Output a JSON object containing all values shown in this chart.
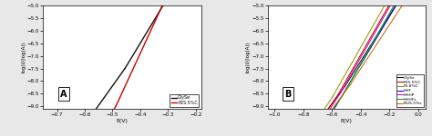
{
  "panel_A": {
    "label": "A",
    "xlabel": "E(V)",
    "ylabel": "log(I/(log(A))",
    "xlim": [
      -0.75,
      -0.18
    ],
    "ylim": [
      -9.1,
      -5.0
    ],
    "yticks": [
      -9.0,
      -8.5,
      -8.0,
      -7.5,
      -7.0,
      -6.5,
      -6.0,
      -5.5,
      -5.0
    ],
    "xticks": [
      -0.7,
      -0.6,
      -0.5,
      -0.4,
      -0.3,
      -0.2
    ],
    "curves": [
      {
        "label": "GlySe",
        "color": "#111111",
        "ecorr": -0.455,
        "icorr": -7.5,
        "ba": 0.055,
        "bc": 0.065,
        "x_start_cat": -0.75,
        "x_end_ano": -0.19
      },
      {
        "label": "P2S.5%C",
        "color": "#cc0000",
        "ecorr": -0.488,
        "icorr": -9.0,
        "ba": 0.042,
        "bc": 0.055,
        "x_start_cat": -0.75,
        "x_end_ano": -0.19
      }
    ]
  },
  "panel_B": {
    "label": "B",
    "xlabel": "E(V)",
    "ylabel": "log(I/(log(A))",
    "xlim": [
      -1.05,
      0.05
    ],
    "ylim": [
      -9.1,
      -5.0
    ],
    "yticks": [
      -9.0,
      -8.5,
      -8.0,
      -7.5,
      -7.0,
      -6.5,
      -6.0,
      -5.5,
      -5.0
    ],
    "xticks": [
      -1.0,
      -0.8,
      -0.6,
      -0.4,
      -0.2,
      0.0
    ],
    "curves": [
      {
        "label": "GlySe",
        "color": "#111111",
        "ecorr": -0.51,
        "icorr": -8.2,
        "ba": 0.11,
        "bc": 0.13,
        "x_start_cat": -1.0,
        "x_end_ano": 0.0
      },
      {
        "label": "P2S.5%C",
        "color": "#cc0000",
        "ecorr": -0.555,
        "icorr": -8.5,
        "ba": 0.1,
        "bc": 0.12,
        "x_start_cat": -1.0,
        "x_end_ano": 0.0
      },
      {
        "label": "P2.8%C",
        "color": "#999900",
        "ecorr": -0.595,
        "icorr": -8.6,
        "ba": 0.1,
        "bc": 0.115,
        "x_start_cat": -1.0,
        "x_end_ano": 0.0
      },
      {
        "label": "HHF",
        "color": "#0000ee",
        "ecorr": -0.575,
        "icorr": -9.0,
        "ba": 0.105,
        "bc": 0.115,
        "x_start_cat": -1.0,
        "x_end_ano": 0.0
      },
      {
        "label": "HHHP",
        "color": "#cc00cc",
        "ecorr": -0.54,
        "icorr": -8.45,
        "ba": 0.1,
        "bc": 0.115,
        "x_start_cat": -1.0,
        "x_end_ano": 0.0
      },
      {
        "label": "HHHFs",
        "color": "#00aa00",
        "ecorr": -0.525,
        "icorr": -8.55,
        "ba": 0.1,
        "bc": 0.12,
        "x_start_cat": -1.0,
        "x_end_ano": 0.0
      },
      {
        "label": "Pt2S.5%s",
        "color": "#cc6600",
        "ecorr": -0.475,
        "icorr": -8.15,
        "ba": 0.115,
        "bc": 0.13,
        "x_start_cat": -1.0,
        "x_end_ano": 0.0
      }
    ]
  }
}
